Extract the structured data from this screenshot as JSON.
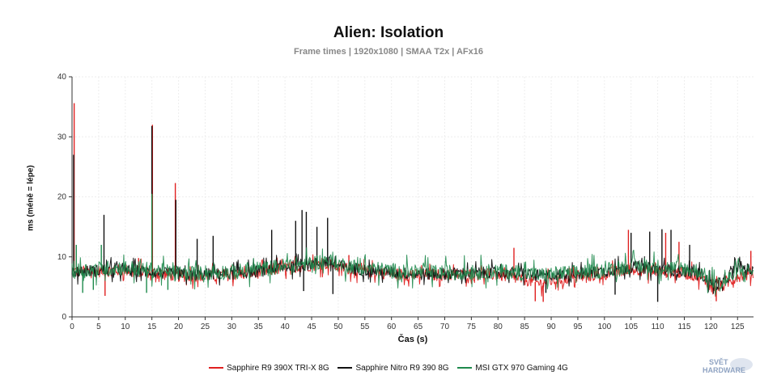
{
  "chart_data": {
    "type": "line",
    "title": "Alien: Isolation",
    "subtitle": "Frame times | 1920x1080 | SMAA T2x | AFx16",
    "xlabel": "Čas (s)",
    "ylabel": "ms (méně = lépe)",
    "xlim": [
      0,
      128
    ],
    "ylim": [
      0,
      40
    ],
    "xticks": [
      0,
      5,
      10,
      15,
      20,
      25,
      30,
      35,
      40,
      45,
      50,
      55,
      60,
      65,
      70,
      75,
      80,
      85,
      90,
      95,
      100,
      105,
      110,
      115,
      120,
      125
    ],
    "yticks": [
      0,
      10,
      20,
      30,
      40
    ],
    "grid": true,
    "legend_position": "bottom",
    "series": [
      {
        "name": "Sapphire R9 390X TRI-X 8G",
        "color": "#e02020",
        "x": [
          0,
          5,
          10,
          15,
          20,
          25,
          30,
          35,
          40,
          45,
          48,
          50,
          55,
          60,
          65,
          70,
          75,
          80,
          85,
          88,
          90,
          95,
          100,
          105,
          110,
          115,
          118,
          120,
          122,
          125,
          128
        ],
        "values": [
          7.5,
          7.6,
          7.8,
          7.4,
          6.8,
          6.9,
          7.0,
          7.4,
          8.2,
          8.6,
          8.9,
          8.3,
          7.6,
          7.2,
          6.9,
          7.0,
          7.1,
          7.0,
          6.2,
          5.6,
          6.0,
          6.6,
          7.1,
          7.9,
          7.6,
          7.3,
          6.7,
          5.2,
          5.0,
          6.8,
          7.2
        ],
        "spikes": [
          [
            0.4,
            35.6
          ],
          [
            15.1,
            32.0
          ],
          [
            19.4,
            22.3
          ],
          [
            6.2,
            3.5
          ],
          [
            12.5,
            9.8
          ],
          [
            52.0,
            10.3
          ],
          [
            83.0,
            11.5
          ],
          [
            87.0,
            2.6
          ],
          [
            88.5,
            2.5
          ],
          [
            104.5,
            14.5
          ],
          [
            111.5,
            14.0
          ],
          [
            114.0,
            12.5
          ],
          [
            121.0,
            2.6
          ],
          [
            127.5,
            11.0
          ]
        ]
      },
      {
        "name": "Sapphire Nitro R9 390 8G",
        "color": "#111111",
        "x": [
          0,
          5,
          10,
          15,
          20,
          25,
          30,
          35,
          40,
          45,
          48,
          50,
          55,
          60,
          65,
          70,
          75,
          80,
          85,
          88,
          90,
          95,
          100,
          105,
          110,
          115,
          118,
          120,
          122,
          125,
          128
        ],
        "values": [
          7.6,
          7.7,
          7.8,
          7.5,
          7.0,
          7.1,
          7.2,
          7.6,
          8.3,
          8.8,
          9.2,
          8.5,
          7.8,
          7.4,
          7.1,
          7.2,
          7.3,
          7.4,
          7.2,
          6.8,
          7.0,
          7.2,
          7.6,
          8.4,
          8.0,
          7.6,
          7.3,
          5.6,
          5.4,
          8.5,
          7.6
        ],
        "spikes": [
          [
            0.3,
            27.0
          ],
          [
            15.0,
            31.8
          ],
          [
            19.5,
            19.5
          ],
          [
            6.0,
            17.0
          ],
          [
            23.5,
            13.0
          ],
          [
            26.5,
            13.5
          ],
          [
            37.5,
            14.5
          ],
          [
            42.0,
            16.0
          ],
          [
            43.2,
            17.8
          ],
          [
            44.0,
            17.5
          ],
          [
            46.0,
            15.0
          ],
          [
            48.0,
            16.5
          ],
          [
            80.5,
            8.8
          ],
          [
            105.0,
            14.0
          ],
          [
            108.5,
            14.2
          ],
          [
            110.8,
            14.6
          ],
          [
            112.5,
            14.5
          ],
          [
            116.0,
            12.0
          ],
          [
            43.5,
            4.3
          ],
          [
            49.0,
            3.8
          ],
          [
            89.0,
            4.0
          ],
          [
            102.0,
            3.7
          ],
          [
            110.0,
            2.5
          ]
        ]
      },
      {
        "name": "MSI GTX 970 Gaming 4G",
        "color": "#1e8a4c",
        "x": [
          0,
          5,
          10,
          15,
          20,
          25,
          30,
          35,
          40,
          45,
          48,
          50,
          55,
          60,
          65,
          70,
          75,
          80,
          85,
          88,
          90,
          95,
          100,
          105,
          110,
          115,
          118,
          120,
          122,
          125,
          128
        ],
        "values": [
          7.6,
          8.0,
          8.2,
          7.8,
          7.3,
          7.4,
          7.5,
          7.9,
          8.5,
          9.0,
          9.4,
          8.8,
          8.1,
          7.7,
          7.4,
          7.4,
          7.5,
          7.6,
          7.3,
          6.9,
          7.1,
          7.4,
          7.8,
          8.5,
          8.3,
          8.0,
          7.6,
          5.7,
          5.5,
          7.5,
          7.7
        ],
        "spikes": [
          [
            15.0,
            20.5
          ],
          [
            0.8,
            12.0
          ],
          [
            2.0,
            4.0
          ],
          [
            4.0,
            4.5
          ],
          [
            5.5,
            12.0
          ],
          [
            14.0,
            4.0
          ],
          [
            18.0,
            4.5
          ]
        ]
      }
    ]
  },
  "legend": {
    "items": [
      {
        "label": "Sapphire R9 390X TRI-X 8G",
        "color": "#e02020"
      },
      {
        "label": "Sapphire Nitro R9 390 8G",
        "color": "#111111"
      },
      {
        "label": "MSI GTX 970 Gaming 4G",
        "color": "#1e8a4c"
      }
    ]
  },
  "logo": {
    "line1": "SVĚT",
    "line2": "HARDWARE"
  }
}
